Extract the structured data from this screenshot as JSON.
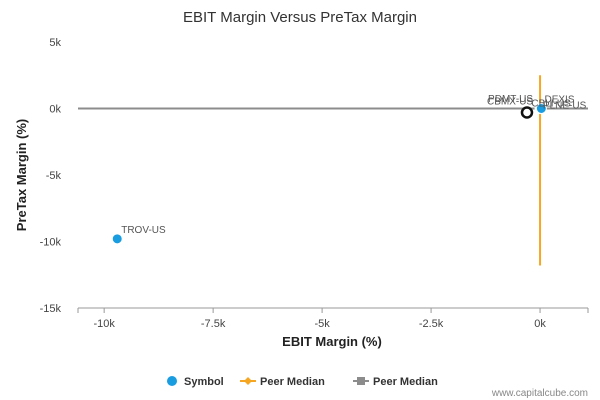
{
  "colors": {
    "symbol": "#1a9de0",
    "peer_median_x": "#f5a623",
    "peer_median_y": "#8c8c8c",
    "axis": "#999999",
    "highlight_ring": "#111111"
  },
  "chart_data": {
    "type": "scatter",
    "title": "EBIT Margin Versus PreTax Margin",
    "xlabel": "EBIT Margin (%)",
    "ylabel": "PreTax Margin (%)",
    "xlim": [
      -10600,
      1100
    ],
    "ylim": [
      -15000,
      5000
    ],
    "x_ticks": [
      {
        "value": -10000,
        "label": "-10k"
      },
      {
        "value": -7500,
        "label": "-7.5k"
      },
      {
        "value": -5000,
        "label": "-5k"
      },
      {
        "value": -2500,
        "label": "-2.5k"
      },
      {
        "value": 0,
        "label": "0k"
      }
    ],
    "y_ticks": [
      {
        "value": 5000,
        "label": "5k"
      },
      {
        "value": 0,
        "label": "0k"
      },
      {
        "value": -5000,
        "label": "-5k"
      },
      {
        "value": -10000,
        "label": "-10k"
      },
      {
        "value": -15000,
        "label": "-15k"
      }
    ],
    "grid": false,
    "legend_position": "bottom",
    "points": [
      {
        "label": "TROV-US",
        "x": -9700,
        "y": -9800
      },
      {
        "label": "CBMX-US",
        "x": -300,
        "y": -300,
        "highlight": true
      },
      {
        "label": "PDMT-US",
        "x": 0,
        "y": 20
      },
      {
        "label": "DEXIS",
        "x": 10,
        "y": 10
      },
      {
        "label": "PLNE-US",
        "x": 20,
        "y": -10
      },
      {
        "label": "CBLI-US",
        "x": 30,
        "y": 0
      }
    ],
    "peer_median_x": {
      "value": 0,
      "y_from": -11800,
      "y_to": 2500
    },
    "peer_median_y": {
      "value": 0
    },
    "legend": [
      {
        "key": "symbol",
        "label": "Symbol",
        "marker": "circle"
      },
      {
        "key": "peer_median_x",
        "label": "Peer Median",
        "marker": "diamond-line"
      },
      {
        "key": "peer_median_y",
        "label": "Peer Median",
        "marker": "square-line"
      }
    ],
    "credit": "www.capitalcube.com"
  }
}
